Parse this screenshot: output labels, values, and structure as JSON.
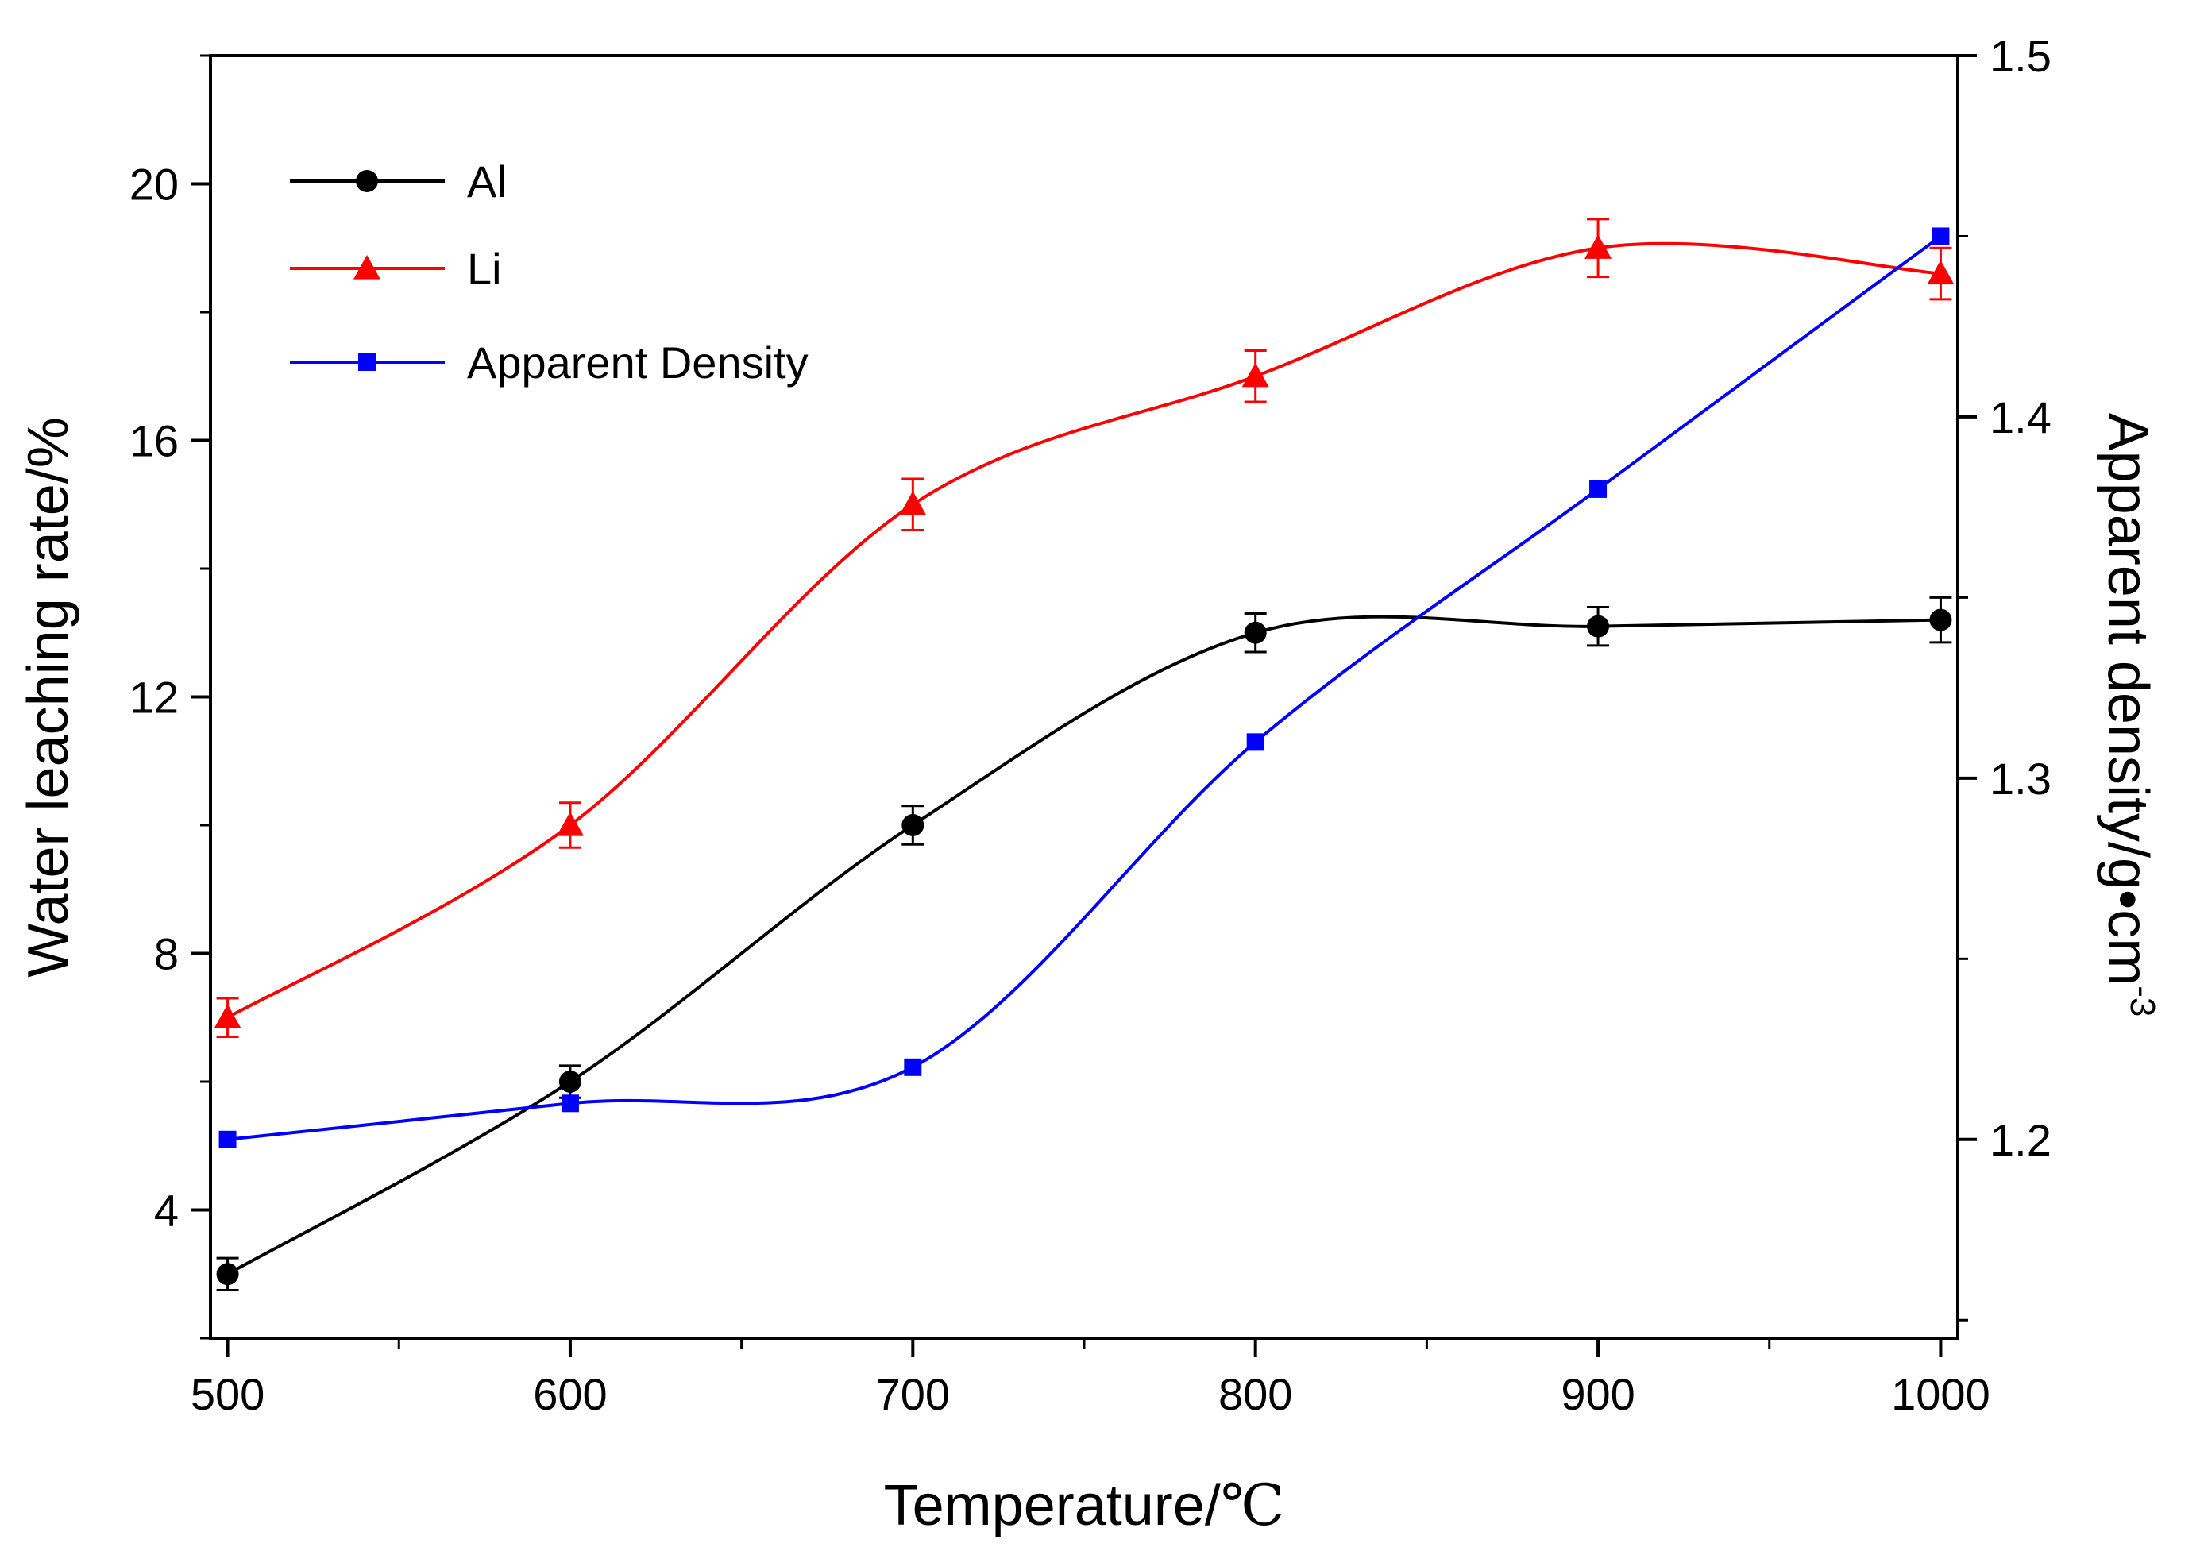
{
  "chart_data": {
    "type": "line",
    "x": [
      500,
      600,
      700,
      800,
      900,
      1000
    ],
    "xlabel": "Temperature/",
    "xlabel_unit": "℃",
    "ylabel_left": "Water leaching rate/%",
    "ylabel_right": "Apparent density/g•cm",
    "ylabel_right_exp": "-3",
    "xlim": [
      495,
      1005
    ],
    "ylim_left": [
      2,
      22
    ],
    "ylim_right": [
      1.145,
      1.5
    ],
    "xticks": [
      "500",
      "600",
      "700",
      "800",
      "900",
      "1000"
    ],
    "yticks_left": [
      "4",
      "8",
      "12",
      "16",
      "20"
    ],
    "yticks_right": [
      "1.2",
      "1.3",
      "1.4",
      "1.5"
    ],
    "grid": false,
    "legend_position": "top-left",
    "series": [
      {
        "name": "Al",
        "axis": "left",
        "marker": "circle",
        "color": "#000000",
        "values": [
          3.0,
          6.0,
          10.0,
          13.0,
          13.1,
          13.2
        ],
        "error": [
          0.25,
          0.25,
          0.3,
          0.3,
          0.3,
          0.35
        ]
      },
      {
        "name": "Li",
        "axis": "left",
        "marker": "triangle",
        "color": "#ff0000",
        "values": [
          7.0,
          10.0,
          15.0,
          17.0,
          19.0,
          18.6
        ],
        "error": [
          0.3,
          0.35,
          0.4,
          0.4,
          0.45,
          0.4
        ]
      },
      {
        "name": "Apparent Density",
        "axis": "right",
        "marker": "square",
        "color": "#0000ff",
        "values": [
          1.2,
          1.21,
          1.22,
          1.31,
          1.38,
          1.45
        ]
      }
    ]
  }
}
